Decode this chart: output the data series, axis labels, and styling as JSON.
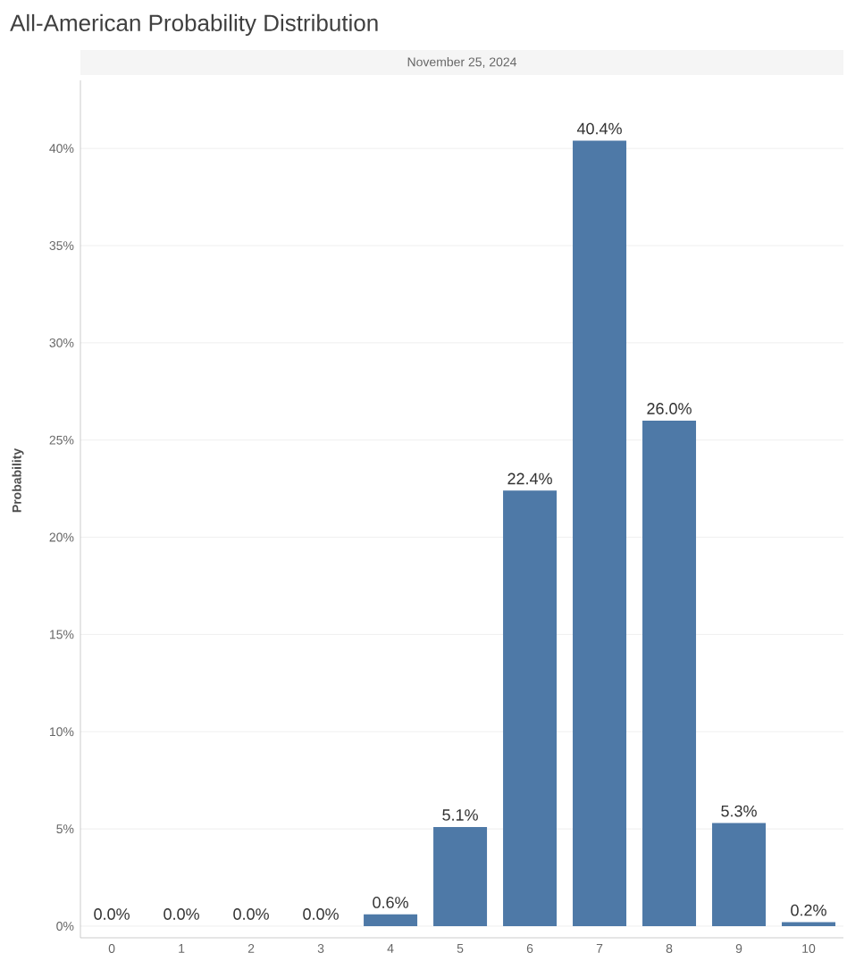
{
  "chart_data": {
    "type": "bar",
    "title": "All-American Probability Distribution",
    "subtitle": "November 25, 2024",
    "ylabel": "Probability",
    "categories": [
      "0",
      "1",
      "2",
      "3",
      "4",
      "5",
      "6",
      "7",
      "8",
      "9",
      "10"
    ],
    "values": [
      0.0,
      0.0,
      0.0,
      0.0,
      0.6,
      5.1,
      22.4,
      40.4,
      26.0,
      5.3,
      0.2
    ],
    "value_labels": [
      "0.0%",
      "0.0%",
      "0.0%",
      "0.0%",
      "0.6%",
      "5.1%",
      "22.4%",
      "40.4%",
      "26.0%",
      "5.3%",
      "0.2%"
    ],
    "color": "#4e79a7",
    "ylim": [
      -0.6,
      43.5
    ],
    "yticks": [
      {
        "value": 0,
        "label": "0%"
      },
      {
        "value": 5,
        "label": "5%"
      },
      {
        "value": 10,
        "label": "10%"
      },
      {
        "value": 15,
        "label": "15%"
      },
      {
        "value": 20,
        "label": "20%"
      },
      {
        "value": 25,
        "label": "25%"
      },
      {
        "value": 30,
        "label": "30%"
      },
      {
        "value": 35,
        "label": "35%"
      },
      {
        "value": 40,
        "label": "40%"
      }
    ],
    "grid": "y"
  }
}
